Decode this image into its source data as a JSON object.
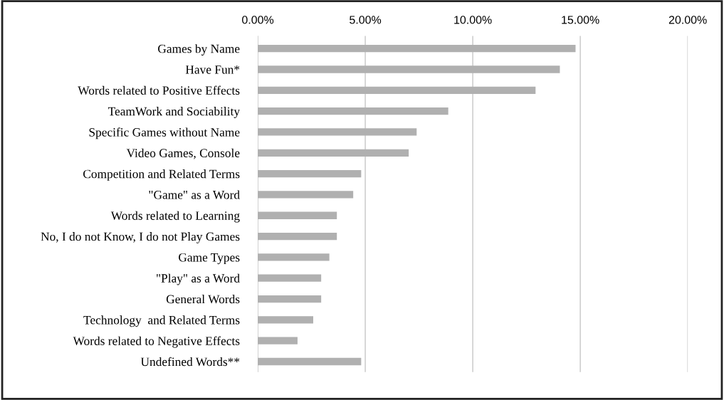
{
  "chart_data": {
    "type": "bar",
    "orientation": "horizontal",
    "categories": [
      "Games by Name",
      "Have Fun*",
      "Words related to Positive Effects",
      "TeamWork and Sociability",
      "Specific Games without Name",
      "Video Games, Console",
      "Competition and Related Terms",
      "\"Game\" as a Word",
      "Words related to Learning",
      "No, I do not Know, I do not Play Games",
      "Game Types",
      "\"Play\" as a Word",
      "General Words",
      "Technology  and Related Terms",
      "Words related to Negative Effects",
      "Undefined Words**"
    ],
    "values": [
      14.78,
      14.05,
      12.92,
      8.86,
      7.39,
      7.02,
      4.81,
      4.44,
      3.68,
      3.68,
      3.33,
      2.95,
      2.95,
      2.58,
      1.85,
      4.81
    ],
    "color": "#b0b0b0",
    "xlim": [
      0,
      20
    ],
    "xticks": [
      {
        "value": 0,
        "label": "0.00%"
      },
      {
        "value": 5,
        "label": "5.00%"
      },
      {
        "value": 10,
        "label": "10.00%"
      },
      {
        "value": 15,
        "label": "15.00%"
      },
      {
        "value": 20,
        "label": "20.00%"
      }
    ],
    "grid": "x"
  }
}
